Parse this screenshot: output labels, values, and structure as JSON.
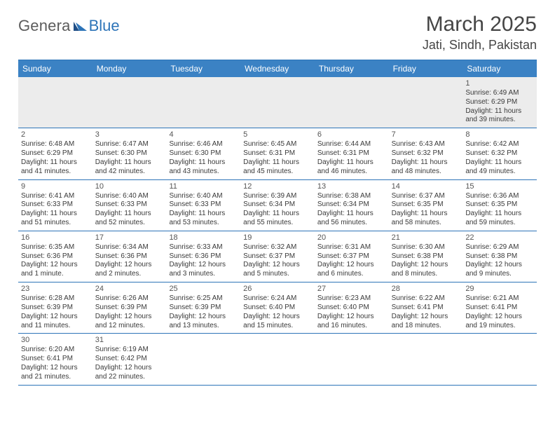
{
  "logo": {
    "part1": "Genera",
    "part2": "Blue"
  },
  "title": "March 2025",
  "location": "Jati, Sindh, Pakistan",
  "colors": {
    "header_bg": "#3b82c4",
    "border": "#2d74b8",
    "logo_gray": "#5c5c5c",
    "logo_blue": "#2d74b8",
    "text": "#3a3a3a",
    "first_row_bg": "#ececec",
    "page_bg": "#ffffff"
  },
  "weekdays": [
    "Sunday",
    "Monday",
    "Tuesday",
    "Wednesday",
    "Thursday",
    "Friday",
    "Saturday"
  ],
  "weeks": [
    [
      {
        "n": "",
        "sr": "",
        "ss": "",
        "dl": "",
        "empty": true
      },
      {
        "n": "",
        "sr": "",
        "ss": "",
        "dl": "",
        "empty": true
      },
      {
        "n": "",
        "sr": "",
        "ss": "",
        "dl": "",
        "empty": true
      },
      {
        "n": "",
        "sr": "",
        "ss": "",
        "dl": "",
        "empty": true
      },
      {
        "n": "",
        "sr": "",
        "ss": "",
        "dl": "",
        "empty": true
      },
      {
        "n": "",
        "sr": "",
        "ss": "",
        "dl": "",
        "empty": true
      },
      {
        "n": "1",
        "sr": "Sunrise: 6:49 AM",
        "ss": "Sunset: 6:29 PM",
        "dl": "Daylight: 11 hours and 39 minutes."
      }
    ],
    [
      {
        "n": "2",
        "sr": "Sunrise: 6:48 AM",
        "ss": "Sunset: 6:29 PM",
        "dl": "Daylight: 11 hours and 41 minutes."
      },
      {
        "n": "3",
        "sr": "Sunrise: 6:47 AM",
        "ss": "Sunset: 6:30 PM",
        "dl": "Daylight: 11 hours and 42 minutes."
      },
      {
        "n": "4",
        "sr": "Sunrise: 6:46 AM",
        "ss": "Sunset: 6:30 PM",
        "dl": "Daylight: 11 hours and 43 minutes."
      },
      {
        "n": "5",
        "sr": "Sunrise: 6:45 AM",
        "ss": "Sunset: 6:31 PM",
        "dl": "Daylight: 11 hours and 45 minutes."
      },
      {
        "n": "6",
        "sr": "Sunrise: 6:44 AM",
        "ss": "Sunset: 6:31 PM",
        "dl": "Daylight: 11 hours and 46 minutes."
      },
      {
        "n": "7",
        "sr": "Sunrise: 6:43 AM",
        "ss": "Sunset: 6:32 PM",
        "dl": "Daylight: 11 hours and 48 minutes."
      },
      {
        "n": "8",
        "sr": "Sunrise: 6:42 AM",
        "ss": "Sunset: 6:32 PM",
        "dl": "Daylight: 11 hours and 49 minutes."
      }
    ],
    [
      {
        "n": "9",
        "sr": "Sunrise: 6:41 AM",
        "ss": "Sunset: 6:33 PM",
        "dl": "Daylight: 11 hours and 51 minutes."
      },
      {
        "n": "10",
        "sr": "Sunrise: 6:40 AM",
        "ss": "Sunset: 6:33 PM",
        "dl": "Daylight: 11 hours and 52 minutes."
      },
      {
        "n": "11",
        "sr": "Sunrise: 6:40 AM",
        "ss": "Sunset: 6:33 PM",
        "dl": "Daylight: 11 hours and 53 minutes."
      },
      {
        "n": "12",
        "sr": "Sunrise: 6:39 AM",
        "ss": "Sunset: 6:34 PM",
        "dl": "Daylight: 11 hours and 55 minutes."
      },
      {
        "n": "13",
        "sr": "Sunrise: 6:38 AM",
        "ss": "Sunset: 6:34 PM",
        "dl": "Daylight: 11 hours and 56 minutes."
      },
      {
        "n": "14",
        "sr": "Sunrise: 6:37 AM",
        "ss": "Sunset: 6:35 PM",
        "dl": "Daylight: 11 hours and 58 minutes."
      },
      {
        "n": "15",
        "sr": "Sunrise: 6:36 AM",
        "ss": "Sunset: 6:35 PM",
        "dl": "Daylight: 11 hours and 59 minutes."
      }
    ],
    [
      {
        "n": "16",
        "sr": "Sunrise: 6:35 AM",
        "ss": "Sunset: 6:36 PM",
        "dl": "Daylight: 12 hours and 1 minute."
      },
      {
        "n": "17",
        "sr": "Sunrise: 6:34 AM",
        "ss": "Sunset: 6:36 PM",
        "dl": "Daylight: 12 hours and 2 minutes."
      },
      {
        "n": "18",
        "sr": "Sunrise: 6:33 AM",
        "ss": "Sunset: 6:36 PM",
        "dl": "Daylight: 12 hours and 3 minutes."
      },
      {
        "n": "19",
        "sr": "Sunrise: 6:32 AM",
        "ss": "Sunset: 6:37 PM",
        "dl": "Daylight: 12 hours and 5 minutes."
      },
      {
        "n": "20",
        "sr": "Sunrise: 6:31 AM",
        "ss": "Sunset: 6:37 PM",
        "dl": "Daylight: 12 hours and 6 minutes."
      },
      {
        "n": "21",
        "sr": "Sunrise: 6:30 AM",
        "ss": "Sunset: 6:38 PM",
        "dl": "Daylight: 12 hours and 8 minutes."
      },
      {
        "n": "22",
        "sr": "Sunrise: 6:29 AM",
        "ss": "Sunset: 6:38 PM",
        "dl": "Daylight: 12 hours and 9 minutes."
      }
    ],
    [
      {
        "n": "23",
        "sr": "Sunrise: 6:28 AM",
        "ss": "Sunset: 6:39 PM",
        "dl": "Daylight: 12 hours and 11 minutes."
      },
      {
        "n": "24",
        "sr": "Sunrise: 6:26 AM",
        "ss": "Sunset: 6:39 PM",
        "dl": "Daylight: 12 hours and 12 minutes."
      },
      {
        "n": "25",
        "sr": "Sunrise: 6:25 AM",
        "ss": "Sunset: 6:39 PM",
        "dl": "Daylight: 12 hours and 13 minutes."
      },
      {
        "n": "26",
        "sr": "Sunrise: 6:24 AM",
        "ss": "Sunset: 6:40 PM",
        "dl": "Daylight: 12 hours and 15 minutes."
      },
      {
        "n": "27",
        "sr": "Sunrise: 6:23 AM",
        "ss": "Sunset: 6:40 PM",
        "dl": "Daylight: 12 hours and 16 minutes."
      },
      {
        "n": "28",
        "sr": "Sunrise: 6:22 AM",
        "ss": "Sunset: 6:41 PM",
        "dl": "Daylight: 12 hours and 18 minutes."
      },
      {
        "n": "29",
        "sr": "Sunrise: 6:21 AM",
        "ss": "Sunset: 6:41 PM",
        "dl": "Daylight: 12 hours and 19 minutes."
      }
    ],
    [
      {
        "n": "30",
        "sr": "Sunrise: 6:20 AM",
        "ss": "Sunset: 6:41 PM",
        "dl": "Daylight: 12 hours and 21 minutes."
      },
      {
        "n": "31",
        "sr": "Sunrise: 6:19 AM",
        "ss": "Sunset: 6:42 PM",
        "dl": "Daylight: 12 hours and 22 minutes."
      },
      {
        "n": "",
        "sr": "",
        "ss": "",
        "dl": "",
        "empty": true
      },
      {
        "n": "",
        "sr": "",
        "ss": "",
        "dl": "",
        "empty": true
      },
      {
        "n": "",
        "sr": "",
        "ss": "",
        "dl": "",
        "empty": true
      },
      {
        "n": "",
        "sr": "",
        "ss": "",
        "dl": "",
        "empty": true
      },
      {
        "n": "",
        "sr": "",
        "ss": "",
        "dl": "",
        "empty": true
      }
    ]
  ]
}
